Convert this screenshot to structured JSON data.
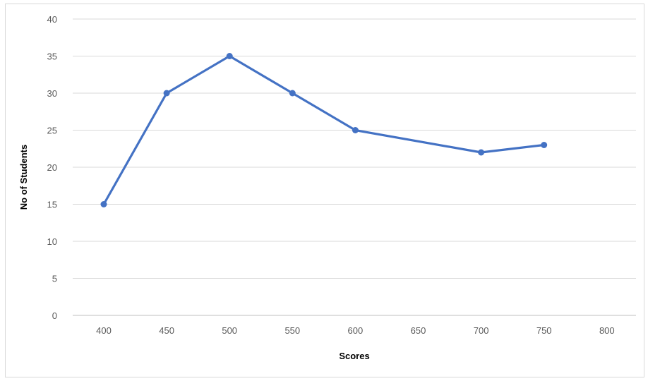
{
  "chart_data": {
    "type": "line",
    "title": "",
    "xlabel": "Scores",
    "ylabel": "No of Students",
    "x_ticks": [
      "400",
      "450",
      "500",
      "550",
      "600",
      "650",
      "700",
      "750",
      "800"
    ],
    "y_ticks": [
      "0",
      "5",
      "10",
      "15",
      "20",
      "25",
      "30",
      "35",
      "40"
    ],
    "xlim": [
      400,
      800
    ],
    "ylim": [
      0,
      40
    ],
    "grid": true,
    "legend": "none",
    "series": [
      {
        "x": [
          400,
          450,
          500,
          550,
          600,
          700,
          750
        ],
        "values": [
          15,
          30,
          35,
          30,
          25,
          22,
          23
        ]
      }
    ],
    "colors": {
      "line": "#4472c4",
      "grid": "#d9d9d9",
      "axis": "#bfbfbf"
    }
  }
}
